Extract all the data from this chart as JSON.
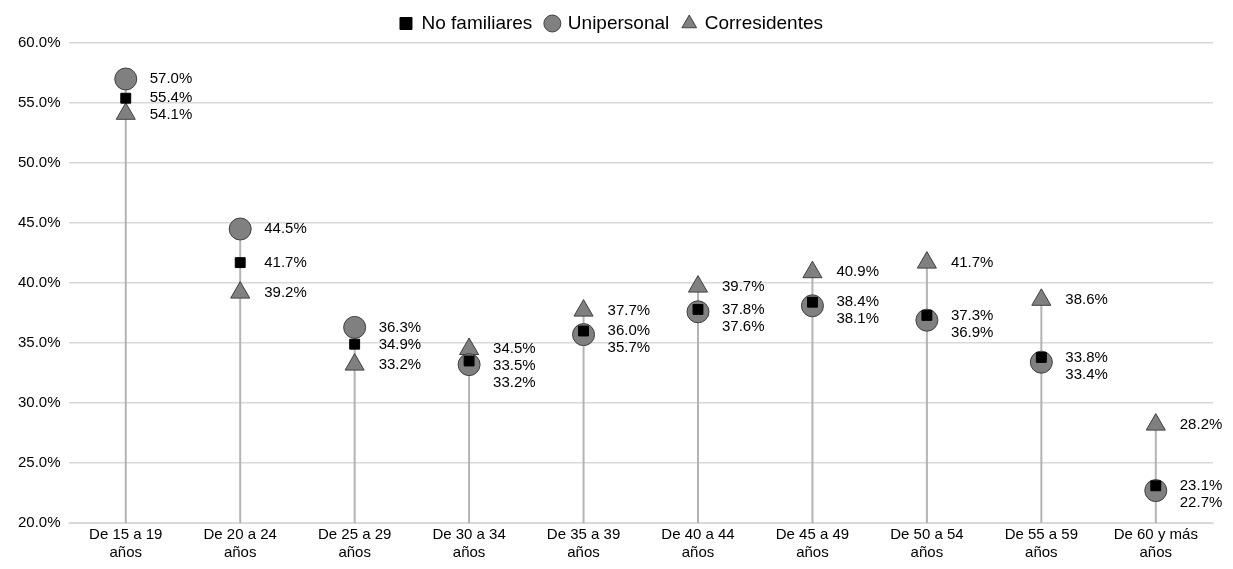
{
  "chart_data": {
    "type": "lollipop",
    "categories": [
      "De 15 a 19 años",
      "De 20 a 24 años",
      "De 25 a 29 años",
      "De 30 a 34 años",
      "De 35 a 39 años",
      "De 40 a 44 años",
      "De 45 a 49 años",
      "De 50 a 54 años",
      "De 55 a 59 años",
      "De 60 y más años"
    ],
    "series": [
      {
        "name": "No familiares",
        "color": "#000000",
        "marker": "square",
        "values": [
          55.4,
          41.7,
          34.9,
          33.5,
          36.0,
          37.8,
          38.4,
          37.3,
          33.8,
          23.1
        ],
        "value_labels": [
          "55.4%",
          "41.7%",
          "34.9%",
          "33.5%",
          "36.0%",
          "37.8%",
          "38.4%",
          "37.3%",
          "33.8%",
          "23.1%"
        ]
      },
      {
        "name": "Unipersonal",
        "color": "#808080",
        "marker": "circle",
        "values": [
          57.0,
          44.5,
          36.3,
          33.2,
          35.7,
          37.6,
          38.1,
          36.9,
          33.4,
          22.7
        ],
        "value_labels": [
          "57.0%",
          "44.5%",
          "36.3%",
          "33.2%",
          "35.7%",
          "37.6%",
          "38.1%",
          "36.9%",
          "33.4%",
          "22.7%"
        ]
      },
      {
        "name": "Corresidentes",
        "color": "#808080",
        "marker": "triangle",
        "values": [
          54.1,
          39.2,
          33.2,
          34.5,
          37.7,
          39.7,
          40.9,
          41.7,
          38.6,
          28.2
        ],
        "value_labels": [
          "54.1%",
          "39.2%",
          "33.2%",
          "34.5%",
          "37.7%",
          "39.7%",
          "40.9%",
          "41.7%",
          "38.6%",
          "28.2%"
        ]
      }
    ],
    "ylim": [
      20,
      60
    ],
    "yticks": [
      {
        "value": 20,
        "label": "20.0%"
      },
      {
        "value": 25,
        "label": "25.0%"
      },
      {
        "value": 30,
        "label": "30.0%"
      },
      {
        "value": 35,
        "label": "35.0%"
      },
      {
        "value": 40,
        "label": "40.0%"
      },
      {
        "value": 45,
        "label": "45.0%"
      },
      {
        "value": 50,
        "label": "50.0%"
      },
      {
        "value": 55,
        "label": "55.0%"
      },
      {
        "value": 60,
        "label": "60.0%"
      }
    ],
    "grid": "y",
    "legend": "top"
  }
}
